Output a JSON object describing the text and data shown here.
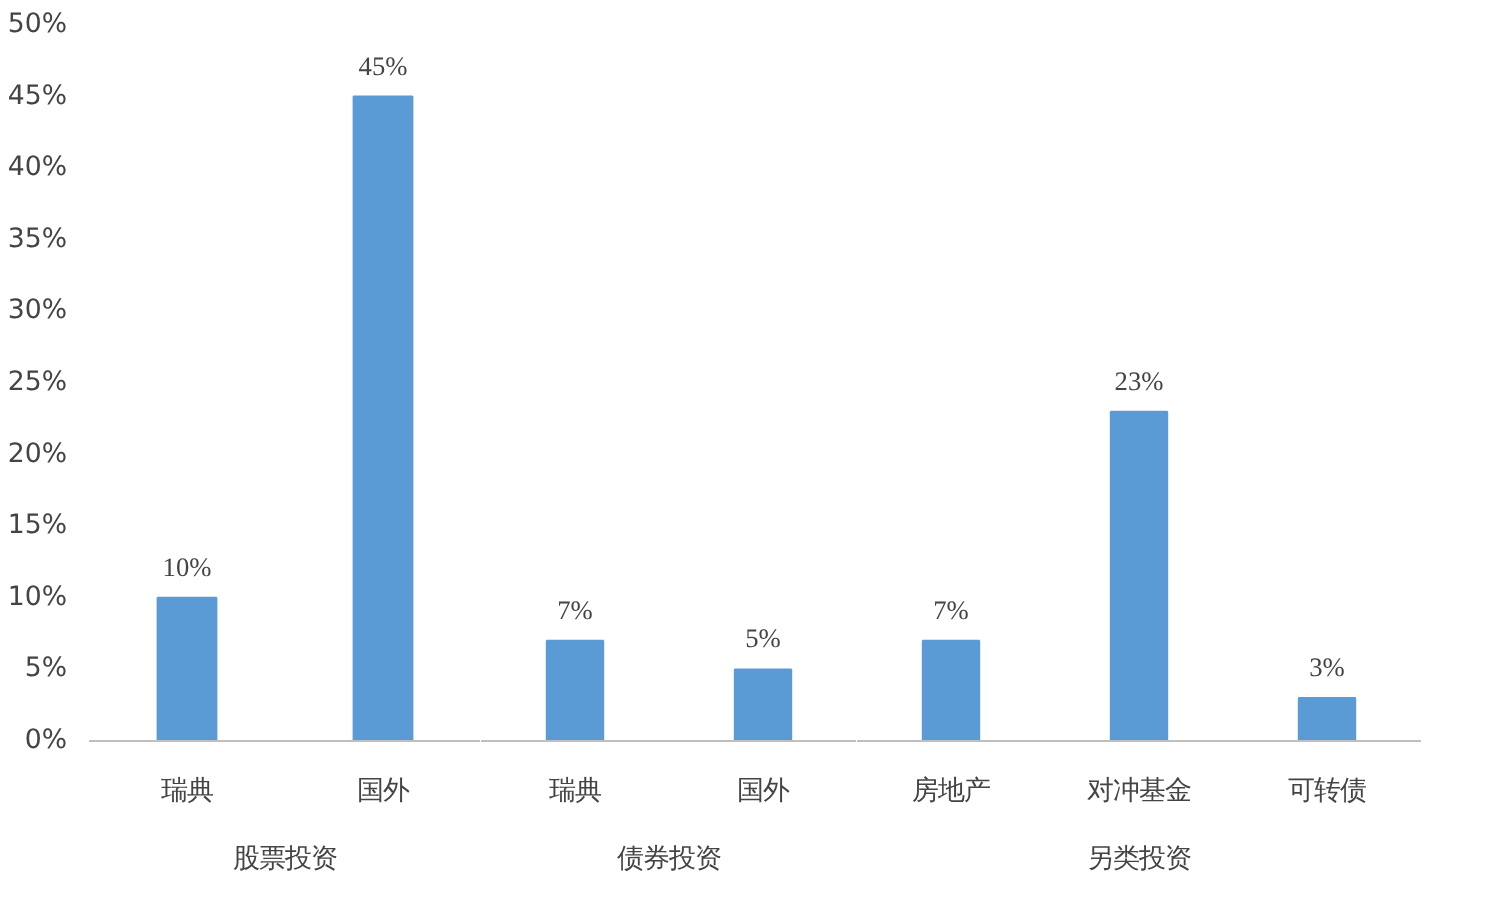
{
  "chart_data": [
    {
      "type": "bar",
      "xlabel": "股票投资",
      "categories": [
        "瑞典",
        "国外"
      ],
      "values": [
        10,
        45
      ],
      "value_labels": [
        "10%",
        "45%"
      ],
      "color": "#5b9bd5",
      "ylim": [
        0,
        50
      ],
      "yticks": [
        {
          "value": 0,
          "label": "0%"
        },
        {
          "value": 5,
          "label": "5%"
        },
        {
          "value": 10,
          "label": "10%"
        },
        {
          "value": 15,
          "label": "15%"
        },
        {
          "value": 20,
          "label": "20%"
        },
        {
          "value": 25,
          "label": "25%"
        },
        {
          "value": 30,
          "label": "30%"
        },
        {
          "value": 35,
          "label": "35%"
        },
        {
          "value": 40,
          "label": "40%"
        },
        {
          "value": 45,
          "label": "45%"
        },
        {
          "value": 50,
          "label": "50%"
        }
      ]
    },
    {
      "type": "bar",
      "xlabel": "债券投资",
      "categories": [
        "瑞典",
        "国外"
      ],
      "values": [
        7,
        5
      ],
      "value_labels": [
        "7%",
        "5%"
      ],
      "color": "#5b9bd5",
      "ylim": [
        0,
        50
      ],
      "tick_labels": "x"
    },
    {
      "type": "bar",
      "xlabel": "另类投资",
      "categories": [
        "房地产",
        "对冲基金",
        "可转债"
      ],
      "values": [
        7,
        23,
        3
      ],
      "value_labels": [
        "7%",
        "23%",
        "3%"
      ],
      "color": "#5b9bd5",
      "ylim": [
        0,
        50
      ],
      "tick_labels": "x"
    }
  ]
}
